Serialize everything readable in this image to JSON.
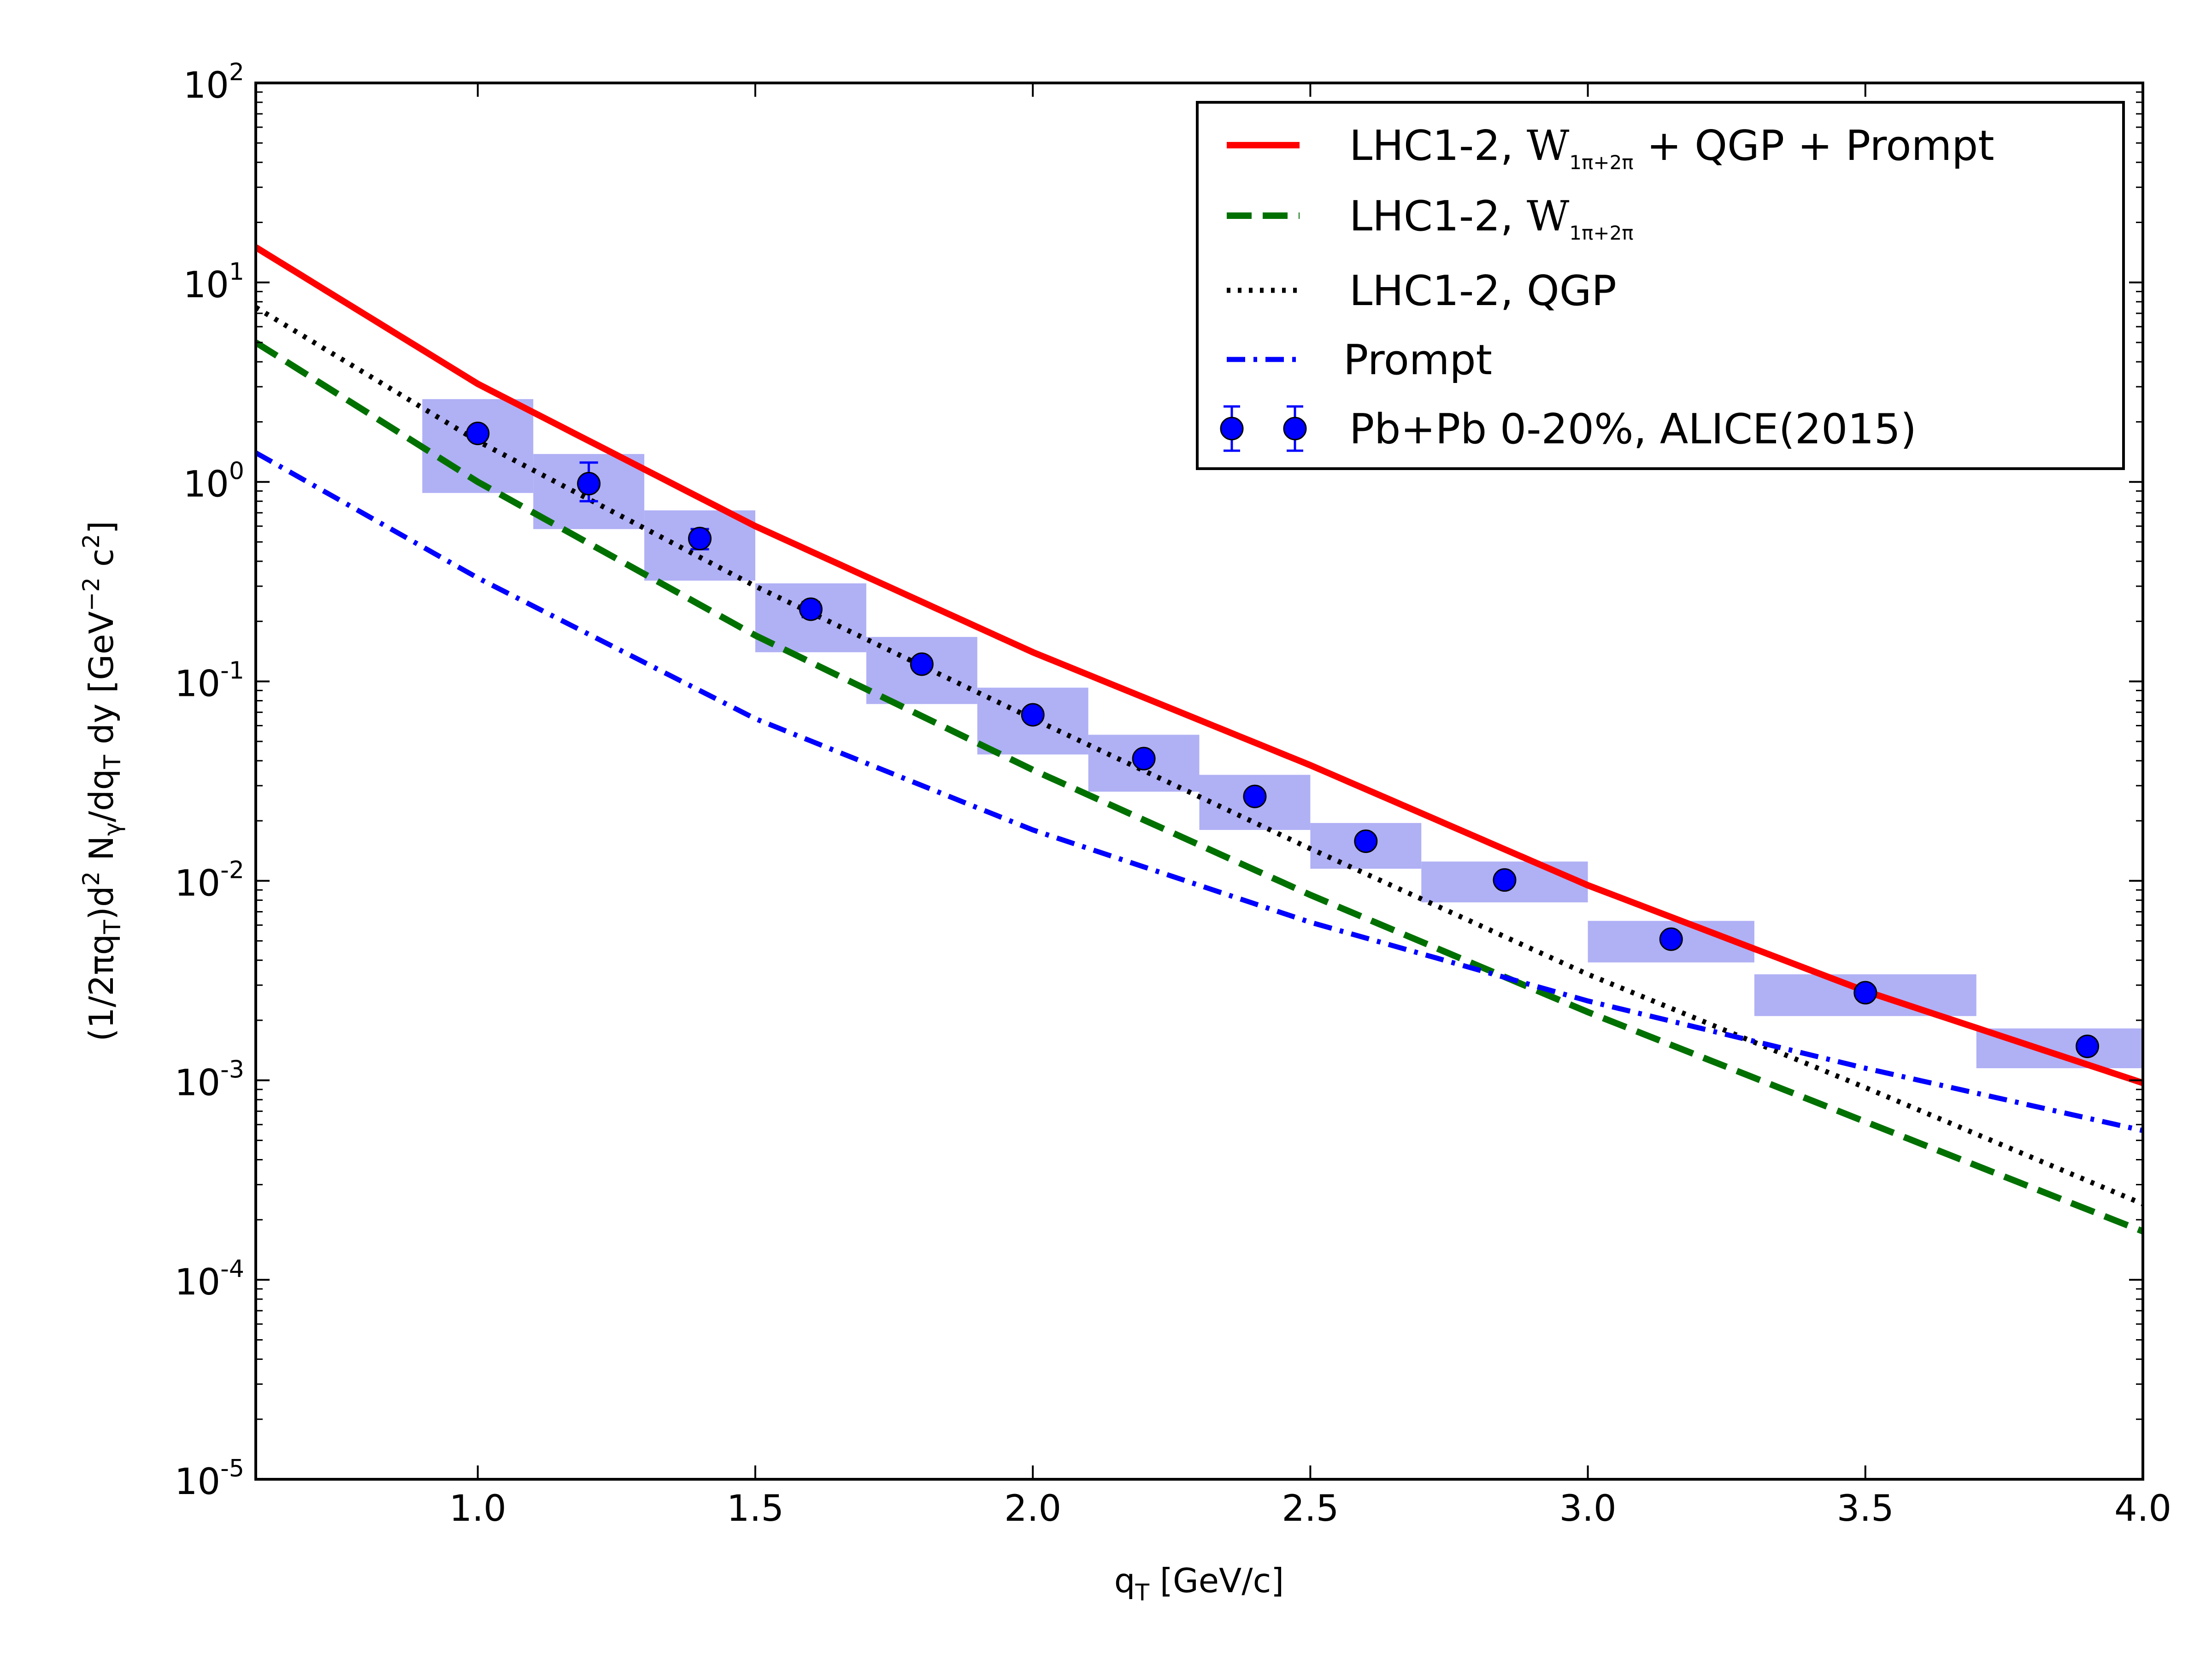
{
  "chart_data": {
    "type": "line",
    "title": "",
    "xlabel": "q_T [GeV/c]",
    "ylabel": "(1/2πq_T)d² N_γ/dq_T dy [GeV^−2 c^2]",
    "xlabel_parts": {
      "main": "q",
      "sub": "T",
      "unit": " [GeV/c]"
    },
    "ylabel_parts": {
      "p1": "(1/2πq",
      "p2": "T",
      "p3": ")d",
      "p4": "2",
      "p5": " N",
      "p6": "γ",
      "p7": "/dq",
      "p8": "T",
      "p9": " dy [GeV",
      "p10": "−2",
      "p11": " c",
      "p12": "2",
      "p13": "]"
    },
    "xlim": [
      0.6,
      4.0
    ],
    "ylim": [
      1e-05,
      100
    ],
    "yscale": "log",
    "x_ticks": [
      1.0,
      1.5,
      2.0,
      2.5,
      3.0,
      3.5,
      4.0
    ],
    "x_tick_labels": [
      "1.0",
      "1.5",
      "2.0",
      "2.5",
      "3.0",
      "3.5",
      "4.0"
    ],
    "y_ticks": [
      1e-05,
      0.0001,
      0.001,
      0.01,
      0.1,
      1,
      10,
      100
    ],
    "y_tick_labels": [
      {
        "base": "10",
        "exp": "-5"
      },
      {
        "base": "10",
        "exp": "-4"
      },
      {
        "base": "10",
        "exp": "-3"
      },
      {
        "base": "10",
        "exp": "-2"
      },
      {
        "base": "10",
        "exp": "-1"
      },
      {
        "base": "10",
        "exp": "0"
      },
      {
        "base": "10",
        "exp": "1"
      },
      {
        "base": "10",
        "exp": "2"
      }
    ],
    "grid": false,
    "legend_position": "top-right",
    "series": [
      {
        "name": "LHC1-2, W_{1π+2π} + QGP + Prompt",
        "legend_parts": {
          "pre": "LHC1-2, ",
          "math": "W",
          "sub": "1π+2π",
          "post": " + QGP + Prompt"
        },
        "style": "solid",
        "color": "#ff0000",
        "x": [
          0.6,
          1.0,
          1.5,
          2.0,
          2.5,
          3.0,
          3.5,
          4.0
        ],
        "y": [
          15.0,
          3.1,
          0.6,
          0.14,
          0.038,
          0.0095,
          0.0028,
          0.00097
        ]
      },
      {
        "name": "LHC1-2, W_{1π+2π}",
        "legend_parts": {
          "pre": "LHC1-2, ",
          "math": "W",
          "sub": "1π+2π",
          "post": ""
        },
        "style": "dashed",
        "color": "#007000",
        "x": [
          0.6,
          1.0,
          1.5,
          2.0,
          2.5,
          3.0,
          3.5,
          4.0
        ],
        "y": [
          5.0,
          1.0,
          0.17,
          0.036,
          0.0085,
          0.0022,
          0.00062,
          0.000175
        ]
      },
      {
        "name": "LHC1-2, QGP",
        "legend_parts": {
          "pre": "LHC1-2, QGP",
          "math": "",
          "sub": "",
          "post": ""
        },
        "style": "dotted",
        "color": "#000000",
        "x": [
          0.6,
          1.0,
          1.5,
          2.0,
          2.5,
          3.0,
          3.5,
          4.0
        ],
        "y": [
          7.5,
          1.6,
          0.3,
          0.065,
          0.0145,
          0.0034,
          0.00092,
          0.00024
        ]
      },
      {
        "name": "Prompt",
        "legend_parts": {
          "pre": "Prompt",
          "math": "",
          "sub": "",
          "post": ""
        },
        "style": "dashdot",
        "color": "#0000ff",
        "x": [
          0.6,
          1.0,
          1.5,
          2.0,
          2.5,
          3.0,
          3.5,
          4.0
        ],
        "y": [
          1.4,
          0.33,
          0.065,
          0.018,
          0.0062,
          0.0025,
          0.00115,
          0.00056
        ]
      }
    ],
    "data_series": {
      "name": "Pb+Pb 0-20%, ALICE(2015)",
      "color": "#0000ff",
      "band_color": "#b0b0f5",
      "points": [
        {
          "x": 1.0,
          "y": 1.75,
          "yerr_lo": 1.63,
          "yerr_hi": 1.87,
          "bin": [
            0.9,
            1.1
          ],
          "sys": [
            0.88,
            2.6
          ]
        },
        {
          "x": 1.2,
          "y": 0.98,
          "yerr_lo": 0.8,
          "yerr_hi": 1.25,
          "bin": [
            1.1,
            1.3
          ],
          "sys": [
            0.58,
            1.38
          ]
        },
        {
          "x": 1.4,
          "y": 0.52,
          "yerr_lo": 0.46,
          "yerr_hi": 0.58,
          "bin": [
            1.3,
            1.5
          ],
          "sys": [
            0.32,
            0.72
          ]
        },
        {
          "x": 1.6,
          "y": 0.23,
          "yerr_lo": 0.21,
          "yerr_hi": 0.25,
          "bin": [
            1.5,
            1.7
          ],
          "sys": [
            0.14,
            0.31
          ]
        },
        {
          "x": 1.8,
          "y": 0.122,
          "yerr_lo": 0.115,
          "yerr_hi": 0.129,
          "bin": [
            1.7,
            1.9
          ],
          "sys": [
            0.077,
            0.167
          ]
        },
        {
          "x": 2.0,
          "y": 0.068,
          "yerr_lo": 0.064,
          "yerr_hi": 0.072,
          "bin": [
            1.9,
            2.1
          ],
          "sys": [
            0.043,
            0.093
          ]
        },
        {
          "x": 2.2,
          "y": 0.041,
          "yerr_lo": 0.0385,
          "yerr_hi": 0.0435,
          "bin": [
            2.1,
            2.3
          ],
          "sys": [
            0.028,
            0.054
          ]
        },
        {
          "x": 2.4,
          "y": 0.0265,
          "yerr_lo": 0.025,
          "yerr_hi": 0.028,
          "bin": [
            2.3,
            2.5
          ],
          "sys": [
            0.018,
            0.034
          ]
        },
        {
          "x": 2.6,
          "y": 0.0158,
          "yerr_lo": 0.015,
          "yerr_hi": 0.0166,
          "bin": [
            2.5,
            2.7
          ],
          "sys": [
            0.0115,
            0.0195
          ]
        },
        {
          "x": 2.85,
          "y": 0.0101,
          "yerr_lo": 0.0096,
          "yerr_hi": 0.0106,
          "bin": [
            2.7,
            3.0
          ],
          "sys": [
            0.0078,
            0.0125
          ]
        },
        {
          "x": 3.15,
          "y": 0.0051,
          "yerr_lo": 0.0048,
          "yerr_hi": 0.0054,
          "bin": [
            3.0,
            3.3
          ],
          "sys": [
            0.0039,
            0.0063
          ]
        },
        {
          "x": 3.5,
          "y": 0.00275,
          "yerr_lo": 0.0026,
          "yerr_hi": 0.0029,
          "bin": [
            3.3,
            3.7
          ],
          "sys": [
            0.0021,
            0.0034
          ]
        },
        {
          "x": 3.9,
          "y": 0.00148,
          "yerr_lo": 0.0014,
          "yerr_hi": 0.00156,
          "bin": [
            3.7,
            4.0
          ],
          "sys": [
            0.00115,
            0.00182
          ]
        }
      ]
    }
  }
}
